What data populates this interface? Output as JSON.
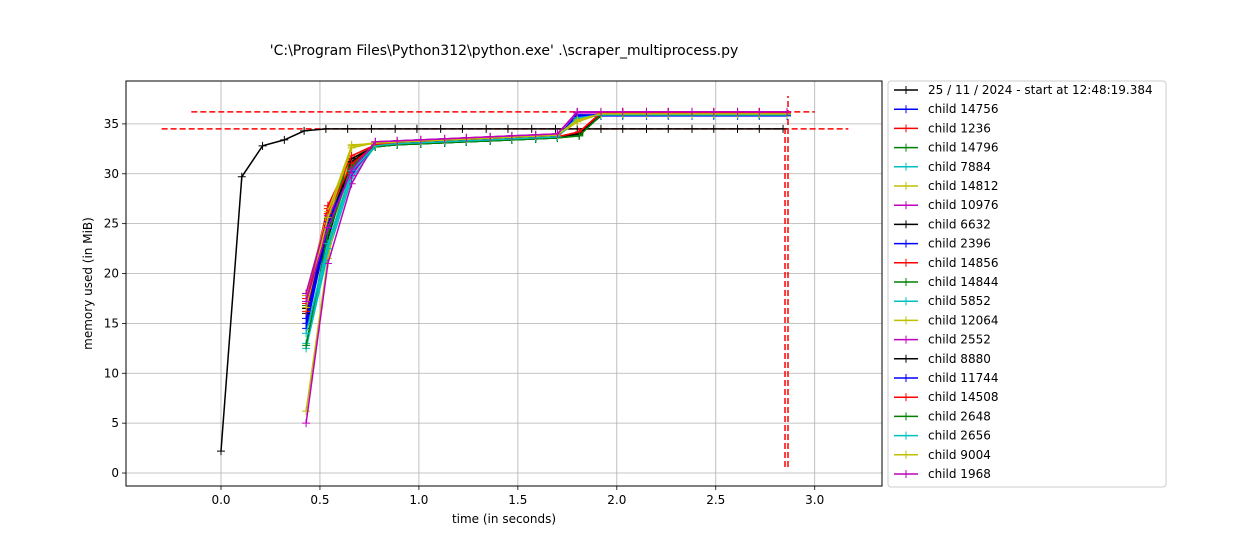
{
  "chart_data": {
    "type": "line",
    "title": "'C:\\Program Files\\Python312\\python.exe' .\\scraper_multiprocess.py",
    "xlabel": "time (in seconds)",
    "ylabel": "memory used (in MiB)",
    "xlim": [
      -0.48,
      3.34
    ],
    "ylim": [
      -1.3,
      39.3
    ],
    "xticks": [
      0.0,
      0.5,
      1.0,
      1.5,
      2.0,
      2.5,
      3.0
    ],
    "xtick_labels": [
      "0.0",
      "0.5",
      "1.0",
      "1.5",
      "2.0",
      "2.5",
      "3.0"
    ],
    "yticks": [
      0,
      5,
      10,
      15,
      20,
      25,
      30,
      35
    ],
    "ytick_labels": [
      "0",
      "5",
      "10",
      "15",
      "20",
      "25",
      "30",
      "35"
    ],
    "grid": true,
    "legend_position": "outside-right",
    "marker": "+",
    "series": [
      {
        "name": "25 / 11 / 2024 - start at 12:48:19.384",
        "color": "#000000",
        "x": [
          0.0,
          0.105,
          0.21,
          0.32,
          0.42,
          0.53,
          0.64,
          0.76,
          0.88,
          0.99,
          1.11,
          1.22,
          1.34,
          1.45,
          1.57,
          1.69,
          1.8,
          1.92,
          2.03,
          2.15,
          2.26,
          2.38,
          2.49,
          2.61,
          2.72,
          2.84
        ],
        "y": [
          2.2,
          29.7,
          32.8,
          33.4,
          34.3,
          34.5,
          34.5,
          34.5,
          34.5,
          34.5,
          34.5,
          34.5,
          34.5,
          34.5,
          34.5,
          34.5,
          34.5,
          34.5,
          34.5,
          34.5,
          34.5,
          34.5,
          34.5,
          34.5,
          34.5,
          34.5
        ]
      },
      {
        "name": "child 14756",
        "color": "#0000ff",
        "x": [
          0.43,
          0.54,
          0.66,
          0.78,
          0.89,
          1.01,
          1.13,
          1.24,
          1.36,
          1.47,
          1.59,
          1.7,
          1.8,
          1.92,
          2.03,
          2.15,
          2.26,
          2.38,
          2.49,
          2.61,
          2.72,
          2.86
        ],
        "y": [
          15.0,
          25.0,
          31.0,
          32.8,
          33.0,
          33.1,
          33.2,
          33.3,
          33.4,
          33.5,
          33.6,
          33.7,
          35.8,
          35.9,
          35.9,
          35.9,
          35.9,
          35.9,
          35.9,
          35.9,
          35.9,
          35.9
        ]
      },
      {
        "name": "child 1236",
        "color": "#ff0000",
        "x": [
          0.43,
          0.54,
          0.66,
          0.78,
          0.89,
          1.01,
          1.13,
          1.24,
          1.36,
          1.47,
          1.59,
          1.7,
          1.81,
          1.92,
          2.03,
          2.15,
          2.26,
          2.38,
          2.49,
          2.61,
          2.72,
          2.86
        ],
        "y": [
          17.5,
          26.5,
          31.5,
          32.9,
          33.0,
          33.1,
          33.2,
          33.3,
          33.4,
          33.5,
          33.6,
          33.7,
          34.2,
          36.1,
          36.2,
          36.2,
          36.2,
          36.2,
          36.2,
          36.2,
          36.2,
          36.2
        ]
      },
      {
        "name": "child 14796",
        "color": "#008000",
        "x": [
          0.43,
          0.54,
          0.66,
          0.78,
          0.89,
          1.01,
          1.13,
          1.24,
          1.36,
          1.47,
          1.59,
          1.7,
          1.81,
          1.92,
          2.03,
          2.15,
          2.26,
          2.38,
          2.49,
          2.61,
          2.72,
          2.86
        ],
        "y": [
          18.0,
          26.0,
          31.5,
          32.8,
          32.9,
          33.0,
          33.1,
          33.2,
          33.3,
          33.4,
          33.5,
          33.6,
          33.8,
          35.9,
          35.9,
          35.9,
          35.9,
          35.9,
          35.9,
          35.9,
          35.9,
          35.9
        ]
      },
      {
        "name": "child 7884",
        "color": "#00bfbf",
        "x": [
          0.43,
          0.54,
          0.66,
          0.78,
          0.89,
          1.01,
          1.13,
          1.24,
          1.36,
          1.47,
          1.59,
          1.7,
          1.8,
          1.92,
          2.03,
          2.15,
          2.26,
          2.38,
          2.49,
          2.61,
          2.72,
          2.86
        ],
        "y": [
          12.5,
          22.0,
          29.5,
          32.8,
          33.0,
          33.1,
          33.2,
          33.3,
          33.4,
          33.5,
          33.6,
          33.7,
          35.6,
          35.9,
          35.9,
          35.9,
          35.9,
          35.9,
          35.9,
          35.9,
          35.9,
          35.9
        ]
      },
      {
        "name": "child 14812",
        "color": "#bfbf00",
        "x": [
          0.43,
          0.54,
          0.66,
          0.78,
          0.89,
          1.01,
          1.13,
          1.24,
          1.36,
          1.47,
          1.59,
          1.7,
          1.8,
          1.92,
          2.03,
          2.15,
          2.26,
          2.38,
          2.49,
          2.61,
          2.72,
          2.86
        ],
        "y": [
          6.2,
          21.5,
          32.9,
          33.0,
          33.1,
          33.2,
          33.3,
          33.4,
          33.5,
          33.6,
          33.7,
          33.8,
          35.2,
          36.0,
          36.0,
          36.0,
          36.0,
          36.0,
          36.0,
          36.0,
          36.0,
          36.0
        ]
      },
      {
        "name": "child 10976",
        "color": "#bf00bf",
        "x": [
          0.43,
          0.54,
          0.66,
          0.78,
          0.89,
          1.01,
          1.13,
          1.24,
          1.36,
          1.47,
          1.59,
          1.7,
          1.8,
          1.92,
          2.03,
          2.15,
          2.26,
          2.38,
          2.49,
          2.61,
          2.72,
          2.86
        ],
        "y": [
          5.0,
          21.0,
          29.0,
          33.2,
          33.3,
          33.4,
          33.5,
          33.6,
          33.7,
          33.8,
          33.9,
          34.0,
          36.2,
          36.2,
          36.2,
          36.2,
          36.2,
          36.2,
          36.2,
          36.2,
          36.2,
          36.2
        ]
      },
      {
        "name": "child 6632",
        "color": "#000000",
        "x": [
          0.43,
          0.54,
          0.66,
          0.78,
          0.89,
          1.01,
          1.13,
          1.24,
          1.36,
          1.47,
          1.59,
          1.7,
          1.81,
          1.92,
          2.03,
          2.15,
          2.26,
          2.38,
          2.49,
          2.61,
          2.72,
          2.86
        ],
        "y": [
          16.5,
          23.5,
          31.5,
          32.7,
          32.9,
          33.0,
          33.1,
          33.2,
          33.3,
          33.4,
          33.5,
          33.6,
          34.0,
          35.8,
          35.9,
          35.9,
          35.9,
          35.9,
          35.9,
          35.9,
          35.9,
          35.9
        ]
      },
      {
        "name": "child 2396",
        "color": "#0000ff",
        "x": [
          0.43,
          0.54,
          0.66,
          0.78,
          0.89,
          1.01,
          1.13,
          1.24,
          1.36,
          1.47,
          1.59,
          1.7,
          1.8,
          1.92,
          2.03,
          2.15,
          2.26,
          2.38,
          2.49,
          2.61,
          2.72,
          2.86
        ],
        "y": [
          14.5,
          24.5,
          30.5,
          32.8,
          33.0,
          33.1,
          33.2,
          33.3,
          33.4,
          33.5,
          33.6,
          33.7,
          35.7,
          35.8,
          35.8,
          35.8,
          35.8,
          35.8,
          35.8,
          35.8,
          35.8,
          35.8
        ]
      },
      {
        "name": "child 14856",
        "color": "#ff0000",
        "x": [
          0.43,
          0.54,
          0.66,
          0.78,
          0.89,
          1.01,
          1.13,
          1.24,
          1.36,
          1.47,
          1.59,
          1.7,
          1.81,
          1.92,
          2.03,
          2.15,
          2.26,
          2.38,
          2.49,
          2.61,
          2.72,
          2.86
        ],
        "y": [
          17.0,
          26.8,
          31.8,
          32.9,
          33.0,
          33.1,
          33.2,
          33.3,
          33.4,
          33.5,
          33.6,
          33.7,
          34.1,
          36.1,
          36.1,
          36.1,
          36.1,
          36.1,
          36.1,
          36.1,
          36.1,
          36.1
        ]
      },
      {
        "name": "child 14844",
        "color": "#008000",
        "x": [
          0.43,
          0.54,
          0.66,
          0.78,
          0.89,
          1.01,
          1.13,
          1.24,
          1.36,
          1.47,
          1.59,
          1.7,
          1.81,
          1.92,
          2.03,
          2.15,
          2.26,
          2.38,
          2.49,
          2.61,
          2.72,
          2.86
        ],
        "y": [
          16.8,
          25.5,
          30.8,
          32.7,
          32.9,
          33.0,
          33.1,
          33.2,
          33.3,
          33.4,
          33.5,
          33.6,
          33.9,
          35.9,
          35.9,
          35.9,
          35.9,
          35.9,
          35.9,
          35.9,
          35.9,
          35.9
        ]
      },
      {
        "name": "child 5852",
        "color": "#00bfbf",
        "x": [
          0.43,
          0.54,
          0.66,
          0.78,
          0.89,
          1.01,
          1.13,
          1.24,
          1.36,
          1.47,
          1.59,
          1.7,
          1.8,
          1.92,
          2.03,
          2.15,
          2.26,
          2.38,
          2.49,
          2.61,
          2.72,
          2.86
        ],
        "y": [
          13.0,
          22.5,
          30.0,
          32.8,
          33.0,
          33.1,
          33.2,
          33.3,
          33.4,
          33.5,
          33.6,
          33.7,
          35.5,
          35.9,
          35.9,
          35.9,
          35.9,
          35.9,
          35.9,
          35.9,
          35.9,
          35.9
        ]
      },
      {
        "name": "child 12064",
        "color": "#bfbf00",
        "x": [
          0.43,
          0.54,
          0.66,
          0.78,
          0.89,
          1.01,
          1.13,
          1.24,
          1.36,
          1.47,
          1.59,
          1.7,
          1.8,
          1.92,
          2.03,
          2.15,
          2.26,
          2.38,
          2.49,
          2.61,
          2.72,
          2.86
        ],
        "y": [
          17.8,
          26.2,
          32.8,
          33.1,
          33.2,
          33.3,
          33.4,
          33.5,
          33.6,
          33.7,
          33.8,
          33.9,
          35.3,
          36.0,
          36.0,
          36.0,
          36.0,
          36.0,
          36.0,
          36.0,
          36.0,
          36.0
        ]
      },
      {
        "name": "child 2552",
        "color": "#bf00bf",
        "x": [
          0.43,
          0.54,
          0.66,
          0.78,
          0.89,
          1.01,
          1.13,
          1.24,
          1.36,
          1.47,
          1.59,
          1.7,
          1.8,
          1.92,
          2.03,
          2.15,
          2.26,
          2.38,
          2.49,
          2.61,
          2.72,
          2.86
        ],
        "y": [
          18.0,
          25.8,
          29.8,
          33.2,
          33.3,
          33.4,
          33.5,
          33.6,
          33.7,
          33.8,
          33.9,
          34.0,
          36.1,
          36.1,
          36.1,
          36.1,
          36.1,
          36.1,
          36.1,
          36.1,
          36.1,
          36.1
        ]
      },
      {
        "name": "child 8880",
        "color": "#000000",
        "x": [
          0.43,
          0.54,
          0.66,
          0.78,
          0.89,
          1.01,
          1.13,
          1.24,
          1.36,
          1.47,
          1.59,
          1.7,
          1.81,
          1.92,
          2.03,
          2.15,
          2.26,
          2.38,
          2.49,
          2.61,
          2.72,
          2.86
        ],
        "y": [
          16.0,
          24.8,
          31.2,
          32.8,
          33.0,
          33.1,
          33.2,
          33.3,
          33.4,
          33.5,
          33.6,
          33.7,
          34.0,
          35.9,
          35.9,
          35.9,
          35.9,
          35.9,
          35.9,
          35.9,
          35.9,
          35.9
        ]
      },
      {
        "name": "child 11744",
        "color": "#0000ff",
        "x": [
          0.43,
          0.54,
          0.66,
          0.78,
          0.89,
          1.01,
          1.13,
          1.24,
          1.36,
          1.47,
          1.59,
          1.7,
          1.8,
          1.92,
          2.03,
          2.15,
          2.26,
          2.38,
          2.49,
          2.61,
          2.72,
          2.86
        ],
        "y": [
          15.5,
          25.2,
          30.2,
          32.8,
          33.0,
          33.1,
          33.2,
          33.3,
          33.4,
          33.5,
          33.6,
          33.7,
          35.9,
          35.9,
          35.9,
          35.9,
          35.9,
          35.9,
          35.9,
          35.9,
          35.9,
          35.9
        ]
      },
      {
        "name": "child 14508",
        "color": "#ff0000",
        "x": [
          0.43,
          0.54,
          0.66,
          0.78,
          0.89,
          1.01,
          1.13,
          1.24,
          1.36,
          1.47,
          1.59,
          1.7,
          1.81,
          1.92,
          2.03,
          2.15,
          2.26,
          2.38,
          2.49,
          2.61,
          2.72,
          2.86
        ],
        "y": [
          16.2,
          26.0,
          31.0,
          32.9,
          33.0,
          33.1,
          33.2,
          33.3,
          33.4,
          33.5,
          33.6,
          33.7,
          34.2,
          36.1,
          36.1,
          36.1,
          36.1,
          36.1,
          36.1,
          36.1,
          36.1,
          36.1
        ]
      },
      {
        "name": "child 2648",
        "color": "#008000",
        "x": [
          0.43,
          0.54,
          0.66,
          0.78,
          0.89,
          1.01,
          1.13,
          1.24,
          1.36,
          1.47,
          1.59,
          1.7,
          1.81,
          1.92,
          2.03,
          2.15,
          2.26,
          2.38,
          2.49,
          2.61,
          2.72,
          2.86
        ],
        "y": [
          12.8,
          24.0,
          30.6,
          32.7,
          32.9,
          33.0,
          33.1,
          33.2,
          33.3,
          33.4,
          33.5,
          33.6,
          33.8,
          35.9,
          35.9,
          35.9,
          35.9,
          35.9,
          35.9,
          35.9,
          35.9,
          35.9
        ]
      },
      {
        "name": "child 2656",
        "color": "#00bfbf",
        "x": [
          0.43,
          0.54,
          0.66,
          0.78,
          0.89,
          1.01,
          1.13,
          1.24,
          1.36,
          1.47,
          1.59,
          1.7,
          1.8,
          1.92,
          2.03,
          2.15,
          2.26,
          2.38,
          2.49,
          2.61,
          2.72,
          2.86
        ],
        "y": [
          14.0,
          23.0,
          30.3,
          32.8,
          33.0,
          33.1,
          33.2,
          33.3,
          33.4,
          33.5,
          33.6,
          33.7,
          35.6,
          35.9,
          35.9,
          35.9,
          35.9,
          35.9,
          35.9,
          35.9,
          35.9,
          35.9
        ]
      },
      {
        "name": "child 9004",
        "color": "#bfbf00",
        "x": [
          0.43,
          0.54,
          0.66,
          0.78,
          0.89,
          1.01,
          1.13,
          1.24,
          1.36,
          1.47,
          1.59,
          1.7,
          1.8,
          1.92,
          2.03,
          2.15,
          2.26,
          2.38,
          2.49,
          2.61,
          2.72,
          2.86
        ],
        "y": [
          16.6,
          25.6,
          32.6,
          33.1,
          33.2,
          33.3,
          33.4,
          33.5,
          33.6,
          33.7,
          33.8,
          33.9,
          35.4,
          36.0,
          36.0,
          36.0,
          36.0,
          36.0,
          36.0,
          36.0,
          36.0,
          36.0
        ]
      },
      {
        "name": "child 1968",
        "color": "#bf00bf",
        "x": [
          0.43,
          0.54,
          0.66,
          0.78,
          0.89,
          1.01,
          1.13,
          1.24,
          1.36,
          1.47,
          1.59,
          1.7,
          1.8,
          1.92,
          2.03,
          2.15,
          2.26,
          2.38,
          2.49,
          2.61,
          2.72,
          2.86
        ],
        "y": [
          17.2,
          24.6,
          30.4,
          33.2,
          33.3,
          33.4,
          33.5,
          33.6,
          33.7,
          33.8,
          33.9,
          34.0,
          36.2,
          36.2,
          36.2,
          36.2,
          36.2,
          36.2,
          36.2,
          36.2,
          36.2,
          36.2
        ]
      }
    ],
    "reference_lines": [
      {
        "orientation": "horizontal",
        "y": 36.2,
        "x_range": [
          -0.15,
          3.0
        ],
        "color": "#ff0000",
        "style": "dashed"
      },
      {
        "orientation": "horizontal",
        "y": 34.5,
        "x_range": [
          -0.3,
          3.17
        ],
        "color": "#ff0000",
        "style": "dashed"
      },
      {
        "orientation": "vertical",
        "x": 2.85,
        "y_range": [
          0.6,
          34.5
        ],
        "color": "#ff0000",
        "style": "dashed"
      },
      {
        "orientation": "vertical",
        "x": 2.865,
        "y_range": [
          0.6,
          37.8
        ],
        "color": "#ff0000",
        "style": "dashed"
      }
    ]
  }
}
